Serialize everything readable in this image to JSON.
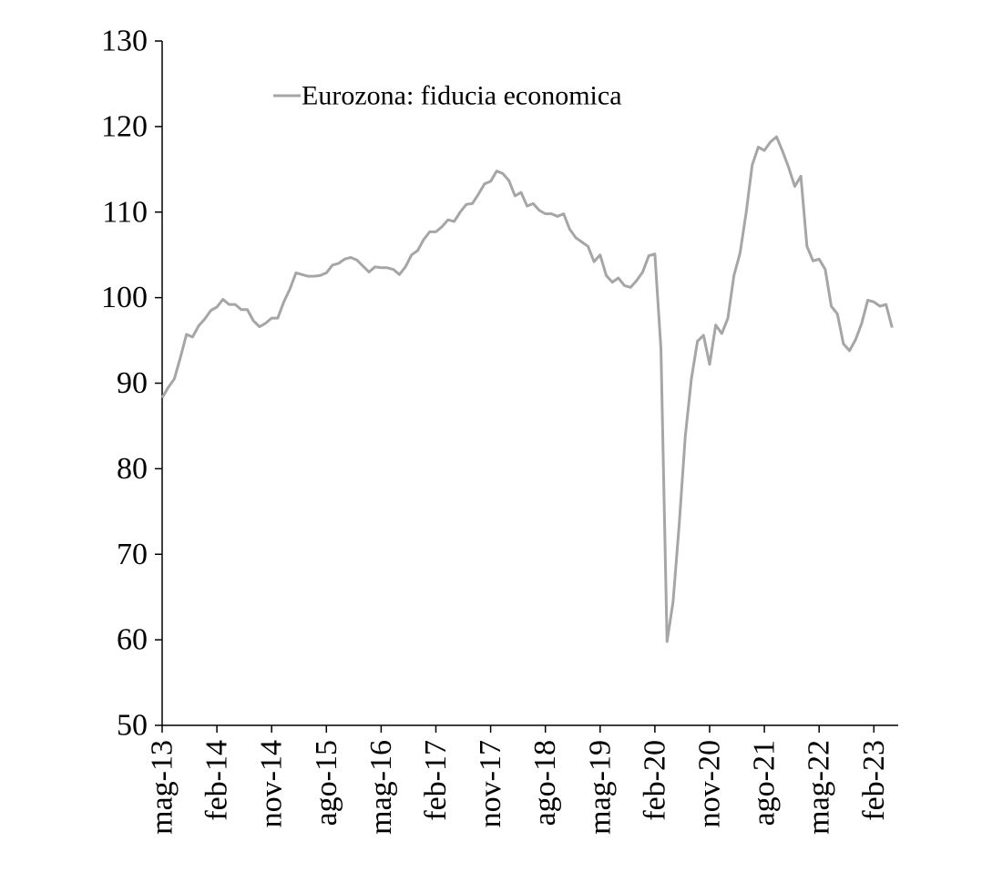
{
  "chart_data": {
    "type": "line",
    "title": "",
    "xlabel": "",
    "ylabel": "",
    "ylim": [
      50,
      130
    ],
    "y_ticks": [
      50,
      60,
      70,
      80,
      90,
      100,
      110,
      120,
      130
    ],
    "y_tick_labels": [
      "50",
      "60",
      "70",
      "80",
      "90",
      "100",
      "110",
      "120",
      "130"
    ],
    "x_tick_labels": [
      "mag-13",
      "feb-14",
      "nov-14",
      "ago-15",
      "mag-16",
      "feb-17",
      "nov-17",
      "ago-18",
      "mag-19",
      "feb-20",
      "nov-20",
      "ago-21",
      "mag-22",
      "feb-23"
    ],
    "x_start": "2013-05",
    "x_end": "2023-06",
    "grid": false,
    "legend": {
      "position": "top-left"
    },
    "series": [
      {
        "name": "Eurozona: fiducia economica",
        "color": "#a6a6a6",
        "points": [
          [
            "2013-05",
            88.3
          ],
          [
            "2013-06",
            89.5
          ],
          [
            "2013-07",
            90.5
          ],
          [
            "2013-08",
            93.0
          ],
          [
            "2013-09",
            95.7
          ],
          [
            "2013-10",
            95.4
          ],
          [
            "2013-11",
            96.7
          ],
          [
            "2013-12",
            97.5
          ],
          [
            "2014-01",
            98.5
          ],
          [
            "2014-02",
            98.9
          ],
          [
            "2014-03",
            99.8
          ],
          [
            "2014-04",
            99.2
          ],
          [
            "2014-05",
            99.2
          ],
          [
            "2014-06",
            98.6
          ],
          [
            "2014-07",
            98.6
          ],
          [
            "2014-08",
            97.3
          ],
          [
            "2014-09",
            96.6
          ],
          [
            "2014-10",
            97.0
          ],
          [
            "2014-11",
            97.6
          ],
          [
            "2014-12",
            97.6
          ],
          [
            "2015-01",
            99.5
          ],
          [
            "2015-02",
            101.0
          ],
          [
            "2015-03",
            102.9
          ],
          [
            "2015-04",
            102.7
          ],
          [
            "2015-05",
            102.5
          ],
          [
            "2015-06",
            102.5
          ],
          [
            "2015-07",
            102.6
          ],
          [
            "2015-08",
            102.9
          ],
          [
            "2015-09",
            103.8
          ],
          [
            "2015-10",
            104.0
          ],
          [
            "2015-11",
            104.5
          ],
          [
            "2015-12",
            104.7
          ],
          [
            "2016-01",
            104.4
          ],
          [
            "2016-02",
            103.7
          ],
          [
            "2016-03",
            103.0
          ],
          [
            "2016-04",
            103.6
          ],
          [
            "2016-05",
            103.5
          ],
          [
            "2016-06",
            103.5
          ],
          [
            "2016-07",
            103.3
          ],
          [
            "2016-08",
            102.7
          ],
          [
            "2016-09",
            103.6
          ],
          [
            "2016-10",
            105.0
          ],
          [
            "2016-11",
            105.5
          ],
          [
            "2016-12",
            106.8
          ],
          [
            "2017-01",
            107.7
          ],
          [
            "2017-02",
            107.7
          ],
          [
            "2017-03",
            108.3
          ],
          [
            "2017-04",
            109.1
          ],
          [
            "2017-05",
            108.9
          ],
          [
            "2017-06",
            110.0
          ],
          [
            "2017-07",
            110.9
          ],
          [
            "2017-08",
            111.0
          ],
          [
            "2017-09",
            112.1
          ],
          [
            "2017-10",
            113.3
          ],
          [
            "2017-11",
            113.6
          ],
          [
            "2017-12",
            114.8
          ],
          [
            "2018-01",
            114.5
          ],
          [
            "2018-02",
            113.7
          ],
          [
            "2018-03",
            111.9
          ],
          [
            "2018-04",
            112.3
          ],
          [
            "2018-05",
            110.7
          ],
          [
            "2018-06",
            111.0
          ],
          [
            "2018-07",
            110.2
          ],
          [
            "2018-08",
            109.8
          ],
          [
            "2018-09",
            109.8
          ],
          [
            "2018-10",
            109.5
          ],
          [
            "2018-11",
            109.8
          ],
          [
            "2018-12",
            108.0
          ],
          [
            "2019-01",
            107.0
          ],
          [
            "2019-02",
            106.5
          ],
          [
            "2019-03",
            106.0
          ],
          [
            "2019-04",
            104.2
          ],
          [
            "2019-05",
            105.0
          ],
          [
            "2019-06",
            102.6
          ],
          [
            "2019-07",
            101.8
          ],
          [
            "2019-08",
            102.3
          ],
          [
            "2019-09",
            101.4
          ],
          [
            "2019-10",
            101.2
          ],
          [
            "2019-11",
            102.0
          ],
          [
            "2019-12",
            103.0
          ],
          [
            "2020-01",
            104.9
          ],
          [
            "2020-02",
            105.1
          ],
          [
            "2020-03",
            94.0
          ],
          [
            "2020-04",
            59.8
          ],
          [
            "2020-05",
            64.5
          ],
          [
            "2020-06",
            73.5
          ],
          [
            "2020-07",
            83.8
          ],
          [
            "2020-08",
            90.5
          ],
          [
            "2020-09",
            94.9
          ],
          [
            "2020-10",
            95.6
          ],
          [
            "2020-11",
            92.2
          ],
          [
            "2020-12",
            96.8
          ],
          [
            "2021-01",
            95.8
          ],
          [
            "2021-02",
            97.6
          ],
          [
            "2021-03",
            102.6
          ],
          [
            "2021-04",
            105.2
          ],
          [
            "2021-05",
            109.9
          ],
          [
            "2021-06",
            115.5
          ],
          [
            "2021-07",
            117.6
          ],
          [
            "2021-08",
            117.2
          ],
          [
            "2021-09",
            118.2
          ],
          [
            "2021-10",
            118.8
          ],
          [
            "2021-11",
            117.1
          ],
          [
            "2021-12",
            115.2
          ],
          [
            "2022-01",
            113.0
          ],
          [
            "2022-02",
            114.2
          ],
          [
            "2022-03",
            106.0
          ],
          [
            "2022-04",
            104.3
          ],
          [
            "2022-05",
            104.5
          ],
          [
            "2022-06",
            103.3
          ],
          [
            "2022-07",
            99.0
          ],
          [
            "2022-08",
            98.1
          ],
          [
            "2022-09",
            94.6
          ],
          [
            "2022-10",
            93.8
          ],
          [
            "2022-11",
            95.1
          ],
          [
            "2022-12",
            97.0
          ],
          [
            "2023-01",
            99.7
          ],
          [
            "2023-02",
            99.5
          ],
          [
            "2023-03",
            99.0
          ],
          [
            "2023-04",
            99.2
          ],
          [
            "2023-05",
            96.5
          ]
        ]
      }
    ]
  }
}
